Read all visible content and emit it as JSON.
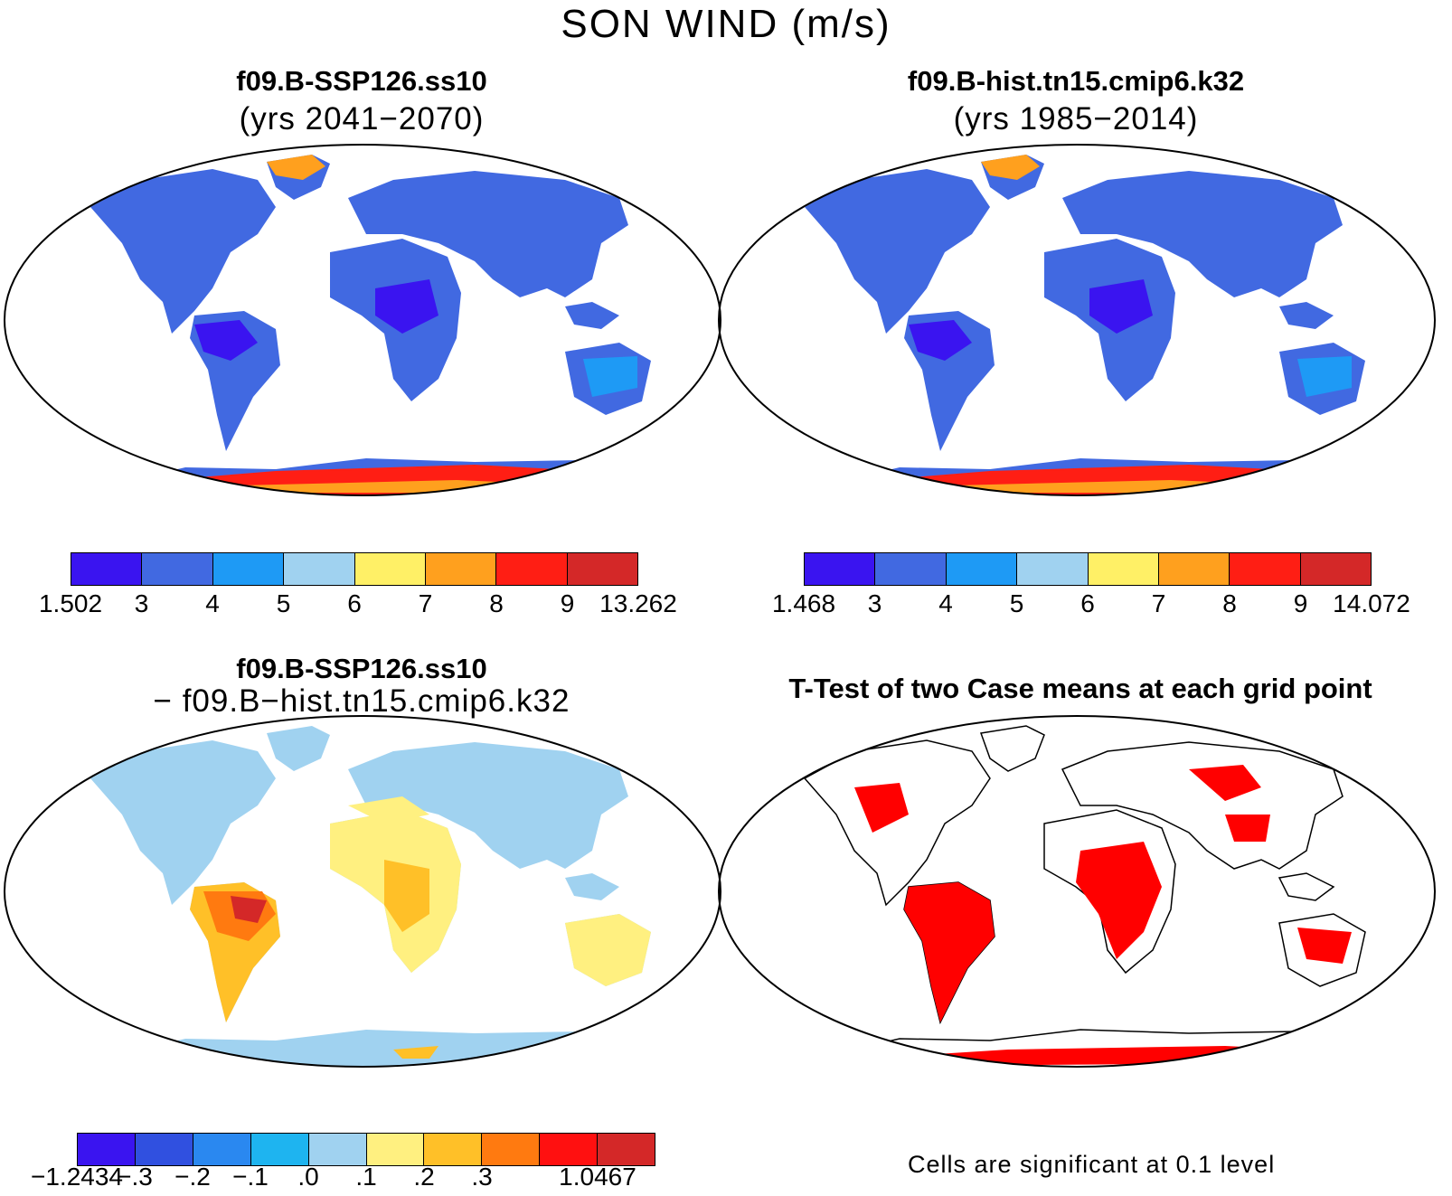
{
  "title": "SON WIND (m/s)",
  "panels": {
    "top_left": {
      "title": "f09.B-SSP126.ss10",
      "subtitle": "(yrs 2041−2070)"
    },
    "top_right": {
      "title": "f09.B-hist.tn15.cmip6.k32",
      "subtitle": "(yrs 1985−2014)"
    },
    "bottom_left": {
      "title": "f09.B-SSP126.ss10",
      "subtitle": "− f09.B−hist.tn15.cmip6.k32"
    },
    "bottom_right": {
      "title": "T-Test of two Case means at each grid point",
      "note": "Cells are significant at 0.1 level"
    }
  },
  "colorbars": {
    "top_left": {
      "colors": [
        "#3a14f0",
        "#4169e1",
        "#1e9af5",
        "#a0d2f0",
        "#fff066",
        "#ffa01e",
        "#ff1e14",
        "#d42828"
      ],
      "labels": [
        "1.502",
        "3",
        "4",
        "5",
        "6",
        "7",
        "8",
        "9",
        "13.262"
      ]
    },
    "top_right": {
      "colors": [
        "#3a14f0",
        "#4169e1",
        "#1e9af5",
        "#a0d2f0",
        "#fff066",
        "#ffa01e",
        "#ff1e14",
        "#d42828"
      ],
      "labels": [
        "1.468",
        "3",
        "4",
        "5",
        "6",
        "7",
        "8",
        "9",
        "14.072"
      ]
    },
    "bottom_left": {
      "colors": [
        "#3a14f0",
        "#3050e0",
        "#2a88f0",
        "#1eb4f0",
        "#a0d2f0",
        "#fff080",
        "#ffc028",
        "#ff7a10",
        "#ff1010",
        "#d42828"
      ],
      "labels": [
        "−1.2434",
        "−.3",
        "−.2",
        "−.1",
        ".0",
        ".1",
        ".2",
        ".3",
        "",
        "1.0467"
      ]
    }
  }
}
